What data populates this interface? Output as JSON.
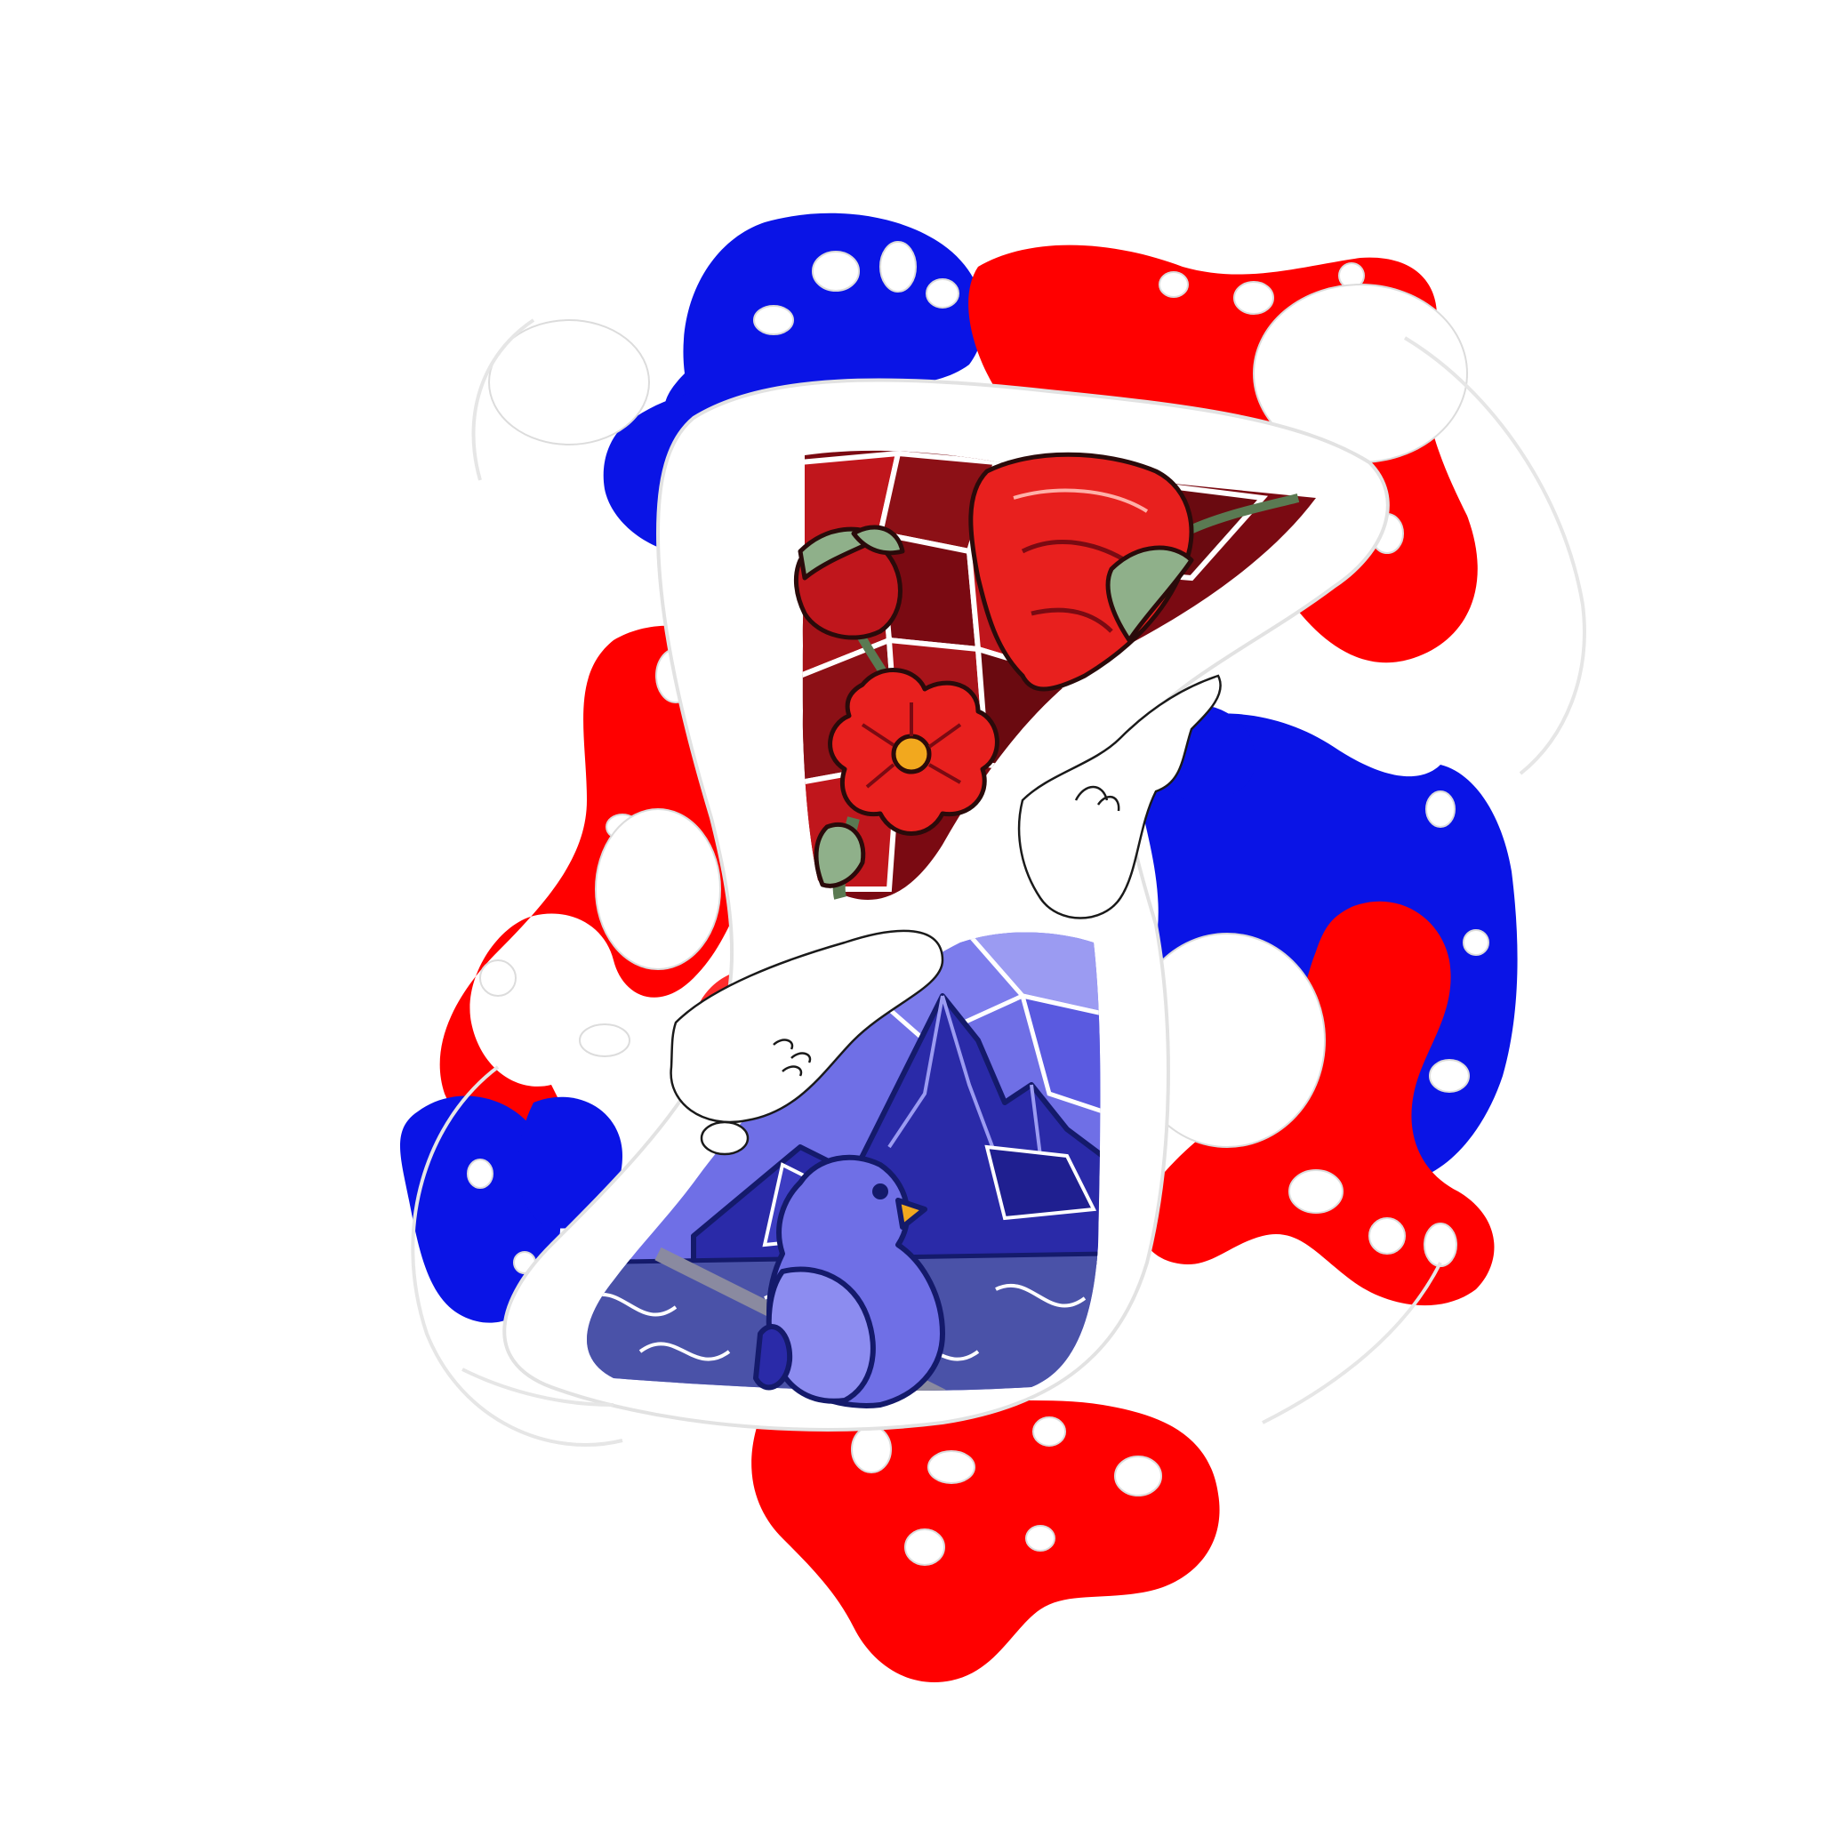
{
  "artwork": {
    "palette": {
      "red": "#ff0000",
      "blue": "#0a14e6",
      "dark_red": "#7a0a12",
      "crimson": "#c0161c",
      "petal_red": "#e8201e",
      "leaf_green": "#8fb08a",
      "indigo": "#2a2aa8",
      "violet": "#6f6fe6",
      "periwinkle": "#9b9bf2",
      "navy": "#141a6b",
      "beak_orange": "#f2a81e",
      "white": "#ffffff",
      "outline": "#2a0a0a"
    },
    "motifs": [
      "rose-flowers-icon",
      "mountain-icon",
      "bird-icon",
      "paint-splash-icon"
    ]
  }
}
